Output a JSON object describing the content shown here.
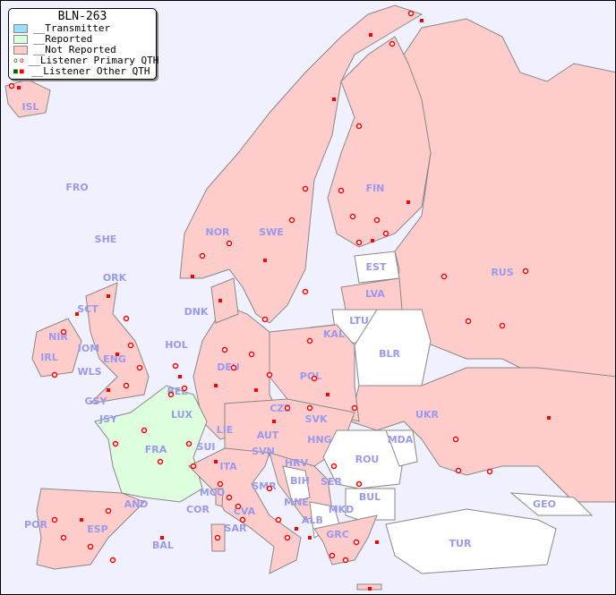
{
  "title": "BLN-263",
  "legend": [
    {
      "label": "__Transmitter",
      "color": "#99ddff"
    },
    {
      "label": "__Reported",
      "color": "#ddffdd"
    },
    {
      "label": "__Not Reported",
      "color": "#ffcccc"
    },
    {
      "label": "__Listener Primary QTH",
      "marker": "circle"
    },
    {
      "label": "__Listener Other QTH",
      "marker": "square"
    }
  ],
  "colors": {
    "sea": "#f0f0ff",
    "not_reported": "#ffcccc",
    "reported": "#ddffdd",
    "no_data": "#ffffff",
    "label": "#9999ee",
    "marker": "#ff0000"
  },
  "countries": [
    "ISL",
    "FRO",
    "SHE",
    "ORK",
    "NOR",
    "SWE",
    "FIN",
    "EST",
    "LVA",
    "LTU",
    "KAL",
    "BLR",
    "RUS",
    "DNK",
    "HOL",
    "BEL",
    "LUX",
    "DEU",
    "POL",
    "CZE",
    "SVK",
    "UKR",
    "MDA",
    "ROU",
    "HNG",
    "AUT",
    "SUI",
    "LIE",
    "FRA",
    "ITA",
    "SVN",
    "HRV",
    "BIH",
    "SER",
    "MNE",
    "ALB",
    "MKD",
    "GRC",
    "BUL",
    "TUR",
    "GEO",
    "COR",
    "MCO",
    "SAR",
    "CVA",
    "SMR",
    "AND",
    "POR",
    "ESP",
    "BAL",
    "IRL",
    "NIR",
    "SCT",
    "IOM",
    "WLS",
    "ENG",
    "GSY",
    "JSY"
  ]
}
